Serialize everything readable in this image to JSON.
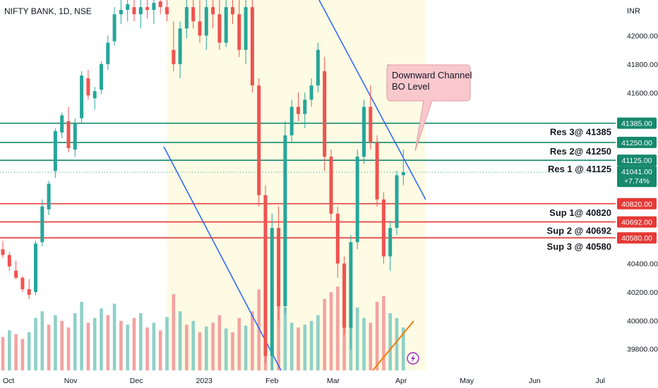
{
  "symbol": "NIFTY BANK, 1D, NSE",
  "currency": "INR",
  "colors": {
    "up": "#26a69a",
    "down": "#ef5350",
    "upVol": "#8fd0c7",
    "downVol": "#f3a3a1",
    "highlight": "#fdfbe4",
    "support": "#e53935",
    "resistance": "#16896d",
    "trend": "#2962ff",
    "orange": "#f57c00"
  },
  "chart_data": {
    "type": "candlestick",
    "y_axis": {
      "range": [
        39650,
        42250
      ],
      "ticks": [
        39800,
        40000,
        40200,
        40400,
        41600,
        41800,
        42000
      ],
      "tick_labels": [
        "39800.00",
        "40000.00",
        "40200.00",
        "40400.00",
        "41600.00",
        "41800.00",
        "42000.00"
      ]
    },
    "x_axis": {
      "labels": [
        {
          "text": "Oct",
          "day": 0
        },
        {
          "text": "Nov",
          "day": 31
        },
        {
          "text": "Dec",
          "day": 61
        },
        {
          "text": "2023",
          "day": 92
        },
        {
          "text": "Feb",
          "day": 123
        },
        {
          "text": "Mar",
          "day": 151
        },
        {
          "text": "Apr",
          "day": 182
        },
        {
          "text": "May",
          "day": 212
        },
        {
          "text": "Jun",
          "day": 243
        },
        {
          "text": "Jul",
          "day": 273
        }
      ]
    },
    "levels": [
      {
        "value": 41385,
        "text": "Res 3@ 41385",
        "price": "41385.00",
        "kind": "resistance"
      },
      {
        "value": 41250,
        "text": "Res 2@ 41250",
        "price": "41250.00",
        "kind": "resistance"
      },
      {
        "value": 41125,
        "text": "Res 1 @ 41125",
        "price": "41125.00",
        "kind": "resistance"
      },
      {
        "value": 40820,
        "text": "Sup 1@ 40820",
        "price": "40820.00",
        "kind": "support"
      },
      {
        "value": 40692,
        "text": "Sup 2 @ 40692",
        "price": "40692.00",
        "kind": "support"
      },
      {
        "value": 40580,
        "text": "Sup 3 @ 40580",
        "price": "40580.00",
        "kind": "support"
      }
    ],
    "last_price": {
      "value": 41041,
      "text": "41041.00",
      "change": "+7.74%"
    },
    "annotation": "Downward Channel\nBO Level",
    "candles": [
      [
        0,
        40500,
        40560,
        40440,
        40460
      ],
      [
        3,
        40460,
        40480,
        40350,
        40380
      ],
      [
        6,
        40350,
        40420,
        40290,
        40300
      ],
      [
        9,
        40300,
        40310,
        40200,
        40220
      ],
      [
        12,
        40220,
        40290,
        40150,
        40180
      ],
      [
        15,
        40200,
        40560,
        40180,
        40540
      ],
      [
        18,
        40550,
        40850,
        40520,
        40800
      ],
      [
        21,
        40780,
        40980,
        40740,
        40960
      ],
      [
        24,
        41050,
        41350,
        41000,
        41330
      ],
      [
        27,
        41320,
        41460,
        41280,
        41440
      ],
      [
        30,
        41400,
        41500,
        41180,
        41210
      ],
      [
        33,
        41200,
        41420,
        41150,
        41380
      ],
      [
        36,
        41420,
        41750,
        41380,
        41720
      ],
      [
        39,
        41700,
        41760,
        41550,
        41580
      ],
      [
        42,
        41560,
        41640,
        41480,
        41610
      ],
      [
        45,
        41620,
        41820,
        41590,
        41800
      ],
      [
        48,
        41800,
        42000,
        41760,
        41950
      ],
      [
        51,
        41960,
        42200,
        41930,
        42150
      ],
      [
        54,
        42150,
        42250,
        42080,
        42180
      ],
      [
        57,
        42180,
        42250,
        42100,
        42220
      ],
      [
        60,
        42200,
        42250,
        42100,
        42150
      ],
      [
        63,
        42150,
        42250,
        42050,
        42200
      ],
      [
        66,
        42200,
        42250,
        42120,
        42180
      ],
      [
        69,
        42180,
        42250,
        42080,
        42230
      ],
      [
        72,
        42240,
        42250,
        42150,
        42200
      ],
      [
        75,
        42200,
        42250,
        42100,
        42150
      ],
      [
        78,
        41900,
        42100,
        41750,
        41800
      ],
      [
        81,
        41800,
        42100,
        41700,
        42050
      ],
      [
        84,
        42050,
        42250,
        41980,
        42200
      ],
      [
        87,
        42200,
        42250,
        42050,
        42100
      ],
      [
        90,
        42100,
        42250,
        41950,
        42000
      ],
      [
        93,
        42000,
        42250,
        41900,
        42200
      ],
      [
        96,
        42200,
        42250,
        42050,
        42150
      ],
      [
        99,
        42150,
        42250,
        41900,
        41950
      ],
      [
        102,
        41950,
        42250,
        41920,
        42200
      ],
      [
        105,
        42200,
        42250,
        42080,
        42150
      ],
      [
        108,
        42150,
        42250,
        41850,
        41900
      ],
      [
        111,
        41900,
        42250,
        41800,
        42200
      ],
      [
        114,
        42200,
        42250,
        41600,
        41650
      ],
      [
        117,
        41650,
        41700,
        40800,
        40880
      ],
      [
        120,
        40880,
        40950,
        39700,
        39750
      ],
      [
        123,
        39750,
        40750,
        39650,
        40650
      ],
      [
        126,
        40650,
        40800,
        40000,
        40100
      ],
      [
        129,
        40100,
        41400,
        40050,
        41300
      ],
      [
        132,
        41300,
        41550,
        41250,
        41500
      ],
      [
        135,
        41500,
        41600,
        41400,
        41450
      ],
      [
        138,
        41450,
        41600,
        41350,
        41550
      ],
      [
        141,
        41550,
        41700,
        41500,
        41650
      ],
      [
        144,
        41650,
        41950,
        41600,
        41900
      ],
      [
        147,
        41750,
        41850,
        41050,
        41150
      ],
      [
        150,
        41150,
        41200,
        40700,
        40750
      ],
      [
        153,
        40750,
        40800,
        40300,
        40400
      ],
      [
        156,
        40400,
        40450,
        39900,
        39950
      ],
      [
        159,
        39950,
        40600,
        39800,
        40550
      ],
      [
        162,
        40550,
        41200,
        40500,
        41150
      ],
      [
        165,
        41150,
        41550,
        41100,
        41500
      ],
      [
        168,
        41500,
        41650,
        41200,
        41250
      ],
      [
        171,
        41250,
        41300,
        40800,
        40850
      ],
      [
        174,
        40850,
        40900,
        40400,
        40450
      ],
      [
        177,
        40450,
        40700,
        40350,
        40650
      ],
      [
        180,
        40650,
        41050,
        40600,
        41020
      ],
      [
        183,
        41020,
        41200,
        40950,
        41041
      ]
    ],
    "volumes": [
      [
        0,
        0.35,
        "down"
      ],
      [
        3,
        0.42,
        "up"
      ],
      [
        6,
        0.38,
        "down"
      ],
      [
        9,
        0.33,
        "down"
      ],
      [
        12,
        0.4,
        "up"
      ],
      [
        15,
        0.55,
        "up"
      ],
      [
        18,
        0.62,
        "up"
      ],
      [
        21,
        0.48,
        "down"
      ],
      [
        24,
        0.58,
        "up"
      ],
      [
        27,
        0.52,
        "down"
      ],
      [
        30,
        0.45,
        "down"
      ],
      [
        33,
        0.6,
        "up"
      ],
      [
        36,
        0.72,
        "up"
      ],
      [
        39,
        0.5,
        "down"
      ],
      [
        42,
        0.55,
        "up"
      ],
      [
        45,
        0.65,
        "up"
      ],
      [
        48,
        0.58,
        "down"
      ],
      [
        51,
        0.7,
        "up"
      ],
      [
        54,
        0.52,
        "down"
      ],
      [
        57,
        0.48,
        "up"
      ],
      [
        60,
        0.55,
        "down"
      ],
      [
        63,
        0.6,
        "up"
      ],
      [
        66,
        0.45,
        "down"
      ],
      [
        69,
        0.5,
        "up"
      ],
      [
        72,
        0.42,
        "down"
      ],
      [
        75,
        0.56,
        "up"
      ],
      [
        78,
        0.8,
        "down"
      ],
      [
        81,
        0.62,
        "up"
      ],
      [
        84,
        0.48,
        "down"
      ],
      [
        87,
        0.52,
        "up"
      ],
      [
        90,
        0.4,
        "down"
      ],
      [
        93,
        0.46,
        "up"
      ],
      [
        96,
        0.5,
        "down"
      ],
      [
        99,
        0.58,
        "down"
      ],
      [
        102,
        0.44,
        "up"
      ],
      [
        105,
        0.4,
        "down"
      ],
      [
        108,
        0.55,
        "down"
      ],
      [
        111,
        0.47,
        "up"
      ],
      [
        114,
        0.62,
        "down"
      ],
      [
        117,
        0.85,
        "down"
      ],
      [
        120,
        1.0,
        "down"
      ],
      [
        123,
        0.9,
        "up"
      ],
      [
        126,
        0.7,
        "down"
      ],
      [
        129,
        0.66,
        "up"
      ],
      [
        132,
        0.5,
        "up"
      ],
      [
        135,
        0.45,
        "down"
      ],
      [
        138,
        0.48,
        "up"
      ],
      [
        141,
        0.52,
        "up"
      ],
      [
        144,
        0.58,
        "up"
      ],
      [
        147,
        0.75,
        "down"
      ],
      [
        150,
        0.82,
        "down"
      ],
      [
        153,
        0.88,
        "down"
      ],
      [
        156,
        0.95,
        "down"
      ],
      [
        159,
        0.7,
        "up"
      ],
      [
        162,
        0.66,
        "up"
      ],
      [
        165,
        0.55,
        "up"
      ],
      [
        168,
        0.5,
        "down"
      ],
      [
        171,
        0.72,
        "down"
      ],
      [
        174,
        0.78,
        "down"
      ],
      [
        177,
        0.6,
        "up"
      ],
      [
        180,
        0.55,
        "up"
      ],
      [
        183,
        0.45,
        "up"
      ]
    ]
  }
}
